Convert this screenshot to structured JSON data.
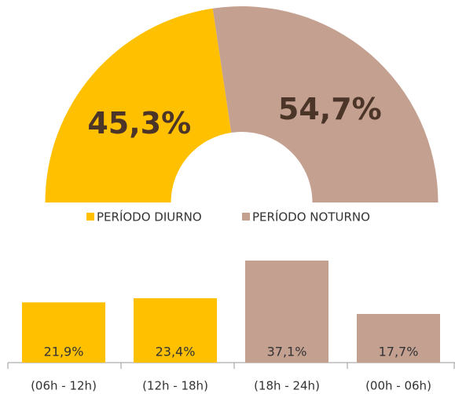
{
  "chart_data": [
    {
      "type": "pie",
      "categories": [
        "PERÍODO DIURNO",
        "PERÍODO NOTURNO"
      ],
      "values": [
        45.3,
        54.7
      ],
      "value_labels": [
        "45,3%",
        "54,7%"
      ],
      "colors": [
        "#FFC000",
        "#C4A091"
      ],
      "legend": "bottom"
    },
    {
      "type": "bar",
      "categories": [
        "(06h - 12h)",
        "(12h - 18h)",
        "(18h - 24h)",
        "(00h - 06h)"
      ],
      "values": [
        21.9,
        23.4,
        37.1,
        17.7
      ],
      "value_labels": [
        "21,9%",
        "23,4%",
        "37,1%",
        "17,7%"
      ],
      "colors": [
        "#FFC000",
        "#FFC000",
        "#C4A091",
        "#C4A091"
      ]
    }
  ]
}
